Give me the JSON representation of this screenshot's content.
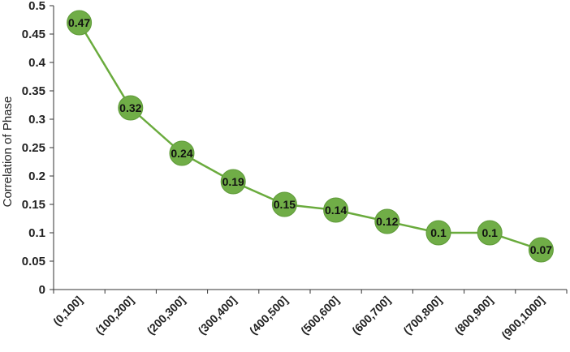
{
  "chart_data": {
    "type": "line",
    "title": "",
    "xlabel": "",
    "ylabel": "Correlation of Phase",
    "categories": [
      "(0,100]",
      "(100,200]",
      "(200,300]",
      "(300,400]",
      "(400,500]",
      "(500,600]",
      "(600,700]",
      "(700,800]",
      "(800,900]",
      "(900,1000]"
    ],
    "values": [
      0.47,
      0.32,
      0.24,
      0.19,
      0.15,
      0.14,
      0.12,
      0.1,
      0.1,
      0.07
    ],
    "value_labels": [
      "0.47",
      "0.32",
      "0.24",
      "0.19",
      "0.15",
      "0.14",
      "0.12",
      "0.1",
      "0.1",
      "0.07"
    ],
    "y_ticks": [
      "0",
      "0.05",
      "0.1",
      "0.15",
      "0.2",
      "0.25",
      "0.3",
      "0.35",
      "0.4",
      "0.45",
      "0.5"
    ],
    "ylim": [
      0,
      0.5
    ],
    "grid": false,
    "legend": "none",
    "colors": {
      "line": "#6aab3d",
      "marker": "#70ad47",
      "marker_stroke": "#5e9a38",
      "axis": "#333333"
    }
  }
}
